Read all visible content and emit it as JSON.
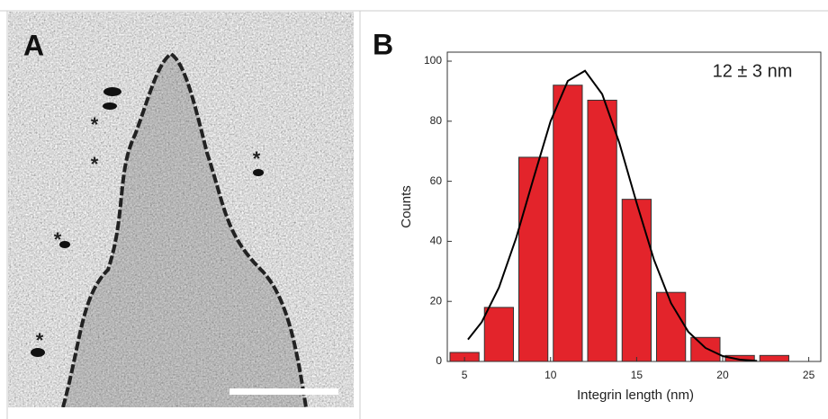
{
  "panel_labels": [
    "A",
    "B"
  ],
  "panel_a": {
    "markers": [
      "*",
      "*",
      "*",
      "*",
      "*"
    ]
  },
  "chart_data": {
    "type": "histogram",
    "annotation": "12 ± 3 nm",
    "x_label": "Integrin length (nm)",
    "y_label": "Counts",
    "bins": [
      4,
      6,
      8,
      10,
      12,
      14,
      16,
      18,
      20,
      22,
      24
    ],
    "values": [
      3,
      18,
      68,
      92,
      87,
      54,
      23,
      8,
      2,
      2
    ],
    "color": "#e3242b",
    "fit": {
      "color": "#000000",
      "x": [
        5.2,
        6,
        7,
        8,
        9,
        10,
        11,
        12,
        13,
        14,
        15,
        16,
        17,
        18,
        19,
        20,
        21,
        22
      ],
      "values": [
        7.3,
        13.1,
        24.6,
        41.1,
        60.8,
        80,
        93.4,
        96.8,
        89,
        72.7,
        52.8,
        34,
        19.4,
        9.9,
        4.5,
        1.8,
        0.6,
        0.2
      ]
    },
    "xlim": [
      4,
      25.7
    ],
    "xticks": [
      5,
      10,
      15,
      20,
      25
    ],
    "ylim": [
      0,
      103
    ],
    "yticks": [
      0,
      20,
      40,
      60,
      80,
      100
    ]
  }
}
